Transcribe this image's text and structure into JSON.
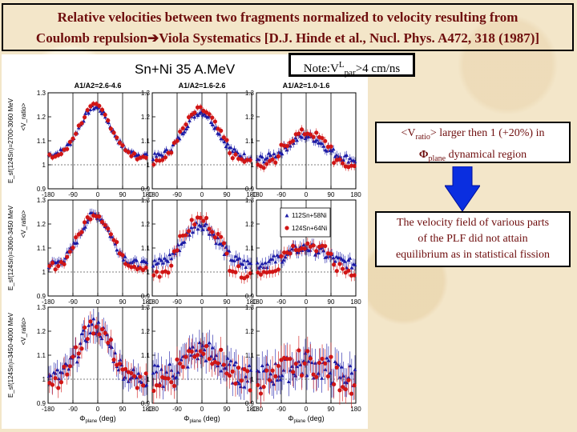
{
  "header": {
    "title_line1": "Relative velocities between two fragments normalized to velocity resulting from",
    "title_line2_a": "Coulomb repulsion",
    "title_arrow": "➔",
    "title_line2_b": "Viola Systematics [D.J. Hinde et al., Nucl. Phys. A472, 318 (1987)]"
  },
  "note": {
    "prefix": "Note:V",
    "sup": "L",
    "sub": "par",
    "suffix": ">4 cm/ns"
  },
  "box2": {
    "line1_a": "<V",
    "line1_sub": "ratio",
    "line1_b": "> larger then 1 (+20%) in",
    "phi": "Φ",
    "line2_sub": "plane",
    "line2_b": " dynamical region"
  },
  "box3": {
    "line1": "The velocity field of various parts",
    "line2": "of the PLF did not attain",
    "line3": "equilibrium as in statistical fission"
  },
  "colors": {
    "title": "#6e0d0d",
    "blue": "#1a1aa6",
    "red": "#d01515",
    "background": "#f3e6c9"
  },
  "chart_data": {
    "type": "scatter",
    "title": "Sn+Ni 35 A.MeV",
    "columns": [
      "A1/A2=2.6-4.6",
      "A1/A2=1.6-2.6",
      "A1/A2=1.0-1.6"
    ],
    "rows": [
      {
        "energy_label": "E_sf(124Sn)=2700-3060 MeV"
      },
      {
        "energy_label": "E_sf(124Sn)=3060-3450 MeV"
      },
      {
        "energy_label": "E_sf(124Sn)=3450-4000 MeV"
      }
    ],
    "ylabel": "<V_ratio>",
    "xlabel": "Φ_plane (deg)",
    "xlabel_text": "(deg)",
    "xlim": [
      -180,
      180
    ],
    "ylim": [
      0.9,
      1.3
    ],
    "xticks": [
      -180,
      -90,
      0,
      90,
      180
    ],
    "yticks": [
      0.9,
      1,
      1.1,
      1.2,
      1.3
    ],
    "legend": {
      "entries": [
        "112Sn+58Ni",
        "124Sn+64Ni"
      ],
      "placement": "row2-col3"
    },
    "panels": [
      {
        "row": 0,
        "col": 0,
        "peak": 1.24,
        "center": -10,
        "width": 55,
        "base": 1.04,
        "err": 0.01,
        "shiftRed": 0.01
      },
      {
        "row": 0,
        "col": 1,
        "peak": 1.22,
        "center": -5,
        "width": 60,
        "base": 1.03,
        "err": 0.012,
        "shiftRed": 0.02
      },
      {
        "row": 0,
        "col": 2,
        "peak": 1.12,
        "center": 0,
        "width": 65,
        "base": 1.02,
        "err": 0.015,
        "shiftRed": 0.03
      },
      {
        "row": 1,
        "col": 0,
        "peak": 1.24,
        "center": -10,
        "width": 55,
        "base": 1.03,
        "err": 0.015,
        "shiftRed": 0.01
      },
      {
        "row": 1,
        "col": 1,
        "peak": 1.2,
        "center": -5,
        "width": 60,
        "base": 1.03,
        "err": 0.02,
        "shiftRed": 0.04
      },
      {
        "row": 1,
        "col": 2,
        "peak": 1.1,
        "center": 0,
        "width": 70,
        "base": 1.03,
        "err": 0.02,
        "shiftRed": 0.03
      },
      {
        "row": 2,
        "col": 0,
        "peak": 1.22,
        "center": -10,
        "width": 55,
        "base": 1.0,
        "err": 0.035,
        "shiftRed": 0.01
      },
      {
        "row": 2,
        "col": 1,
        "peak": 1.12,
        "center": 0,
        "width": 60,
        "base": 1.01,
        "err": 0.045,
        "shiftRed": 0.02
      },
      {
        "row": 2,
        "col": 2,
        "peak": 1.06,
        "center": 0,
        "width": 70,
        "base": 1.01,
        "err": 0.05,
        "shiftRed": 0.02
      }
    ]
  }
}
